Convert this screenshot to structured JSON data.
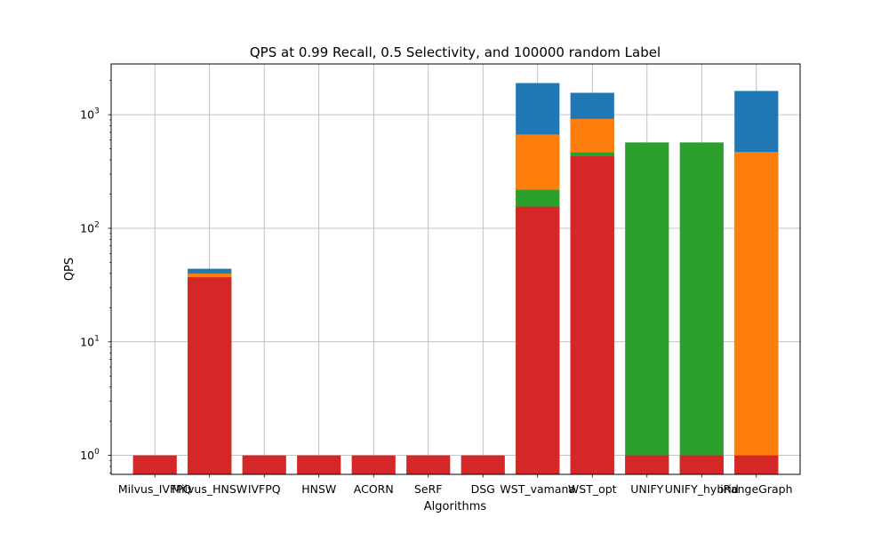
{
  "chart_data": {
    "type": "bar",
    "stacked": "overlaid",
    "title": "QPS at 0.99 Recall, 0.5 Selectivity, and 100000 random Label",
    "xlabel": "Algorithms",
    "ylabel": "QPS",
    "yscale": "log",
    "ylim": [
      0.68,
      2800
    ],
    "yticks": [
      {
        "value": 1,
        "base": "10",
        "exp": "0"
      },
      {
        "value": 10,
        "base": "10",
        "exp": "1"
      },
      {
        "value": 100,
        "base": "10",
        "exp": "2"
      },
      {
        "value": 1000,
        "base": "10",
        "exp": "3"
      }
    ],
    "grid": true,
    "categories": [
      "Milvus_IVFPQ",
      "Milvus_HNSW",
      "IVFPQ",
      "HNSW",
      "ACORN",
      "SeRF",
      "DSG",
      "WST_vamana",
      "WST_opt",
      "UNIFY",
      "UNIFY_hybrid",
      "iRangeGraph"
    ],
    "series": [
      {
        "color": "#1f77b4",
        "values": [
          null,
          44,
          null,
          null,
          null,
          null,
          null,
          1900,
          1560,
          null,
          null,
          1620
        ]
      },
      {
        "color": "#ff7f0e",
        "values": [
          null,
          40,
          null,
          null,
          null,
          null,
          null,
          670,
          920,
          null,
          null,
          470
        ]
      },
      {
        "color": "#2ca02c",
        "values": [
          null,
          null,
          null,
          null,
          null,
          null,
          null,
          218,
          465,
          570,
          570,
          null
        ]
      },
      {
        "color": "#d62728",
        "values": [
          1,
          37,
          1,
          1,
          1,
          1,
          1,
          155,
          430,
          1,
          1,
          1
        ]
      }
    ]
  }
}
